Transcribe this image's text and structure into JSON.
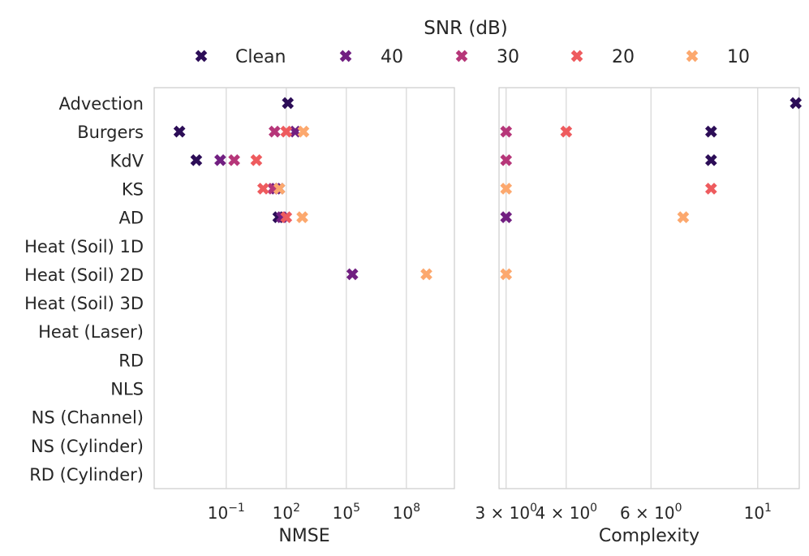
{
  "legend": {
    "title": "SNR (dB)",
    "entries": [
      {
        "label": "Clean",
        "color": "#2c0d57"
      },
      {
        "label": "40",
        "color": "#711f81"
      },
      {
        "label": "30",
        "color": "#b63679"
      },
      {
        "label": "20",
        "color": "#ee5b5e"
      },
      {
        "label": "10",
        "color": "#fca86e"
      }
    ]
  },
  "chart_data": [
    {
      "type": "scatter",
      "name": "nmse-panel",
      "xlabel": "NMSE",
      "xscale": "log",
      "xlim_log10": [
        -4.6,
        10.4
      ],
      "xticks": [
        {
          "log10": -1,
          "label": "10",
          "sup": "−1"
        },
        {
          "log10": 2,
          "label": "10",
          "sup": "2"
        },
        {
          "log10": 5,
          "label": "10",
          "sup": "5"
        },
        {
          "log10": 8,
          "label": "10",
          "sup": "8"
        }
      ],
      "categories": [
        "Advection",
        "Burgers",
        "KdV",
        "KS",
        "AD",
        "Heat (Soil) 1D",
        "Heat (Soil) 2D",
        "Heat (Soil) 3D",
        "Heat (Laser)",
        "RD",
        "NLS",
        "NS (Channel)",
        "NS (Cylinder)",
        "RD (Cylinder)"
      ],
      "series": [
        {
          "name": "Clean",
          "points": [
            [
              "Advection",
              120
            ],
            [
              "Burgers",
              0.00046
            ],
            [
              "KdV",
              0.0032
            ],
            [
              "KS",
              45
            ],
            [
              "AD",
              40
            ]
          ]
        },
        {
          "name": "40",
          "points": [
            [
              "Burgers",
              280
            ],
            [
              "KdV",
              0.05
            ],
            [
              "KS",
              30
            ],
            [
              "AD",
              60
            ],
            [
              "Heat (Soil) 2D",
              200000
            ]
          ]
        },
        {
          "name": "30",
          "points": [
            [
              "Burgers",
              26
            ],
            [
              "KdV",
              0.25
            ],
            [
              "KS",
              22
            ]
          ]
        },
        {
          "name": "20",
          "points": [
            [
              "Burgers",
              100
            ],
            [
              "KdV",
              3.2
            ],
            [
              "KS",
              7
            ],
            [
              "AD",
              100
            ]
          ]
        },
        {
          "name": "10",
          "points": [
            [
              "Burgers",
              720
            ],
            [
              "KS",
              45
            ],
            [
              "AD",
              630
            ],
            [
              "Heat (Soil) 2D",
              1000000000
            ]
          ]
        }
      ]
    },
    {
      "type": "scatter",
      "name": "complexity-panel",
      "xlabel": "Complexity",
      "xscale": "log",
      "xlim": [
        2.9,
        12.2
      ],
      "xticks": [
        {
          "value": 3,
          "label": "3 × 10",
          "sup": "0"
        },
        {
          "value": 4,
          "label": "4 × 10",
          "sup": "0"
        },
        {
          "value": 6,
          "label": "6 × 10",
          "sup": "0"
        },
        {
          "value": 10,
          "label": "10",
          "sup": "1"
        }
      ],
      "series": [
        {
          "name": "Clean",
          "points": [
            [
              "Advection",
              12
            ],
            [
              "Burgers",
              8
            ],
            [
              "KdV",
              8
            ]
          ]
        },
        {
          "name": "40",
          "points": [
            [
              "AD",
              3
            ]
          ]
        },
        {
          "name": "30",
          "points": [
            [
              "Burgers",
              3
            ],
            [
              "KdV",
              3
            ]
          ]
        },
        {
          "name": "20",
          "points": [
            [
              "Burgers",
              4
            ],
            [
              "KS",
              8
            ]
          ]
        },
        {
          "name": "10",
          "points": [
            [
              "KS",
              3
            ],
            [
              "AD",
              7
            ],
            [
              "Heat (Soil) 2D",
              3
            ]
          ]
        }
      ]
    }
  ]
}
